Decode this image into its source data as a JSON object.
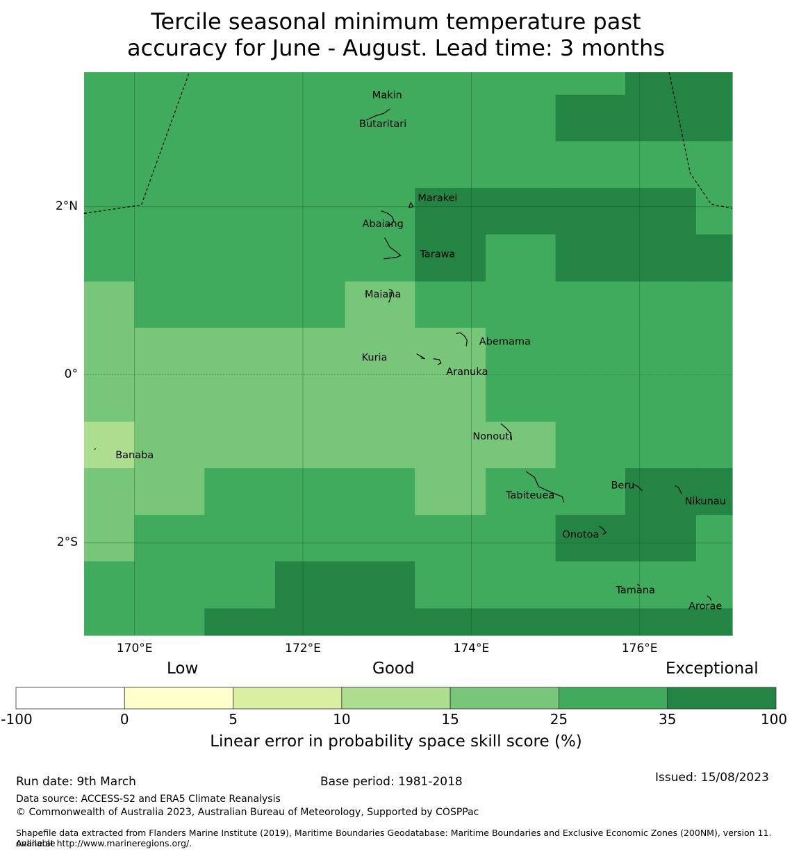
{
  "title": {
    "line1": "Tercile seasonal minimum temperature past",
    "line2": "accuracy for June - August. Lead time: 3 months"
  },
  "map": {
    "lon_range": [
      169.4,
      177.1
    ],
    "lat_range": [
      -3.1,
      3.6
    ],
    "x_ticks": [
      {
        "value": 170,
        "label": "170°E"
      },
      {
        "value": 172,
        "label": "172°E"
      },
      {
        "value": 174,
        "label": "174°E"
      },
      {
        "value": 176,
        "label": "176°E"
      }
    ],
    "y_ticks": [
      {
        "value": 2,
        "label": "2°N"
      },
      {
        "value": 0,
        "label": "0°"
      },
      {
        "value": -2,
        "label": "2°S"
      }
    ],
    "lon_edges": [
      169.4,
      170.0,
      170.83,
      171.67,
      172.5,
      173.33,
      174.17,
      175.0,
      175.83,
      176.67,
      177.1
    ],
    "lat_edges": [
      3.6,
      3.33,
      2.78,
      2.22,
      1.67,
      1.11,
      0.56,
      0.0,
      -0.56,
      -1.11,
      -1.67,
      -2.22,
      -2.78,
      -3.1
    ],
    "grid_classes": [
      [
        5,
        5,
        5,
        5,
        5,
        5,
        5,
        5,
        6,
        6
      ],
      [
        5,
        5,
        5,
        5,
        5,
        5,
        5,
        6,
        6,
        6
      ],
      [
        5,
        5,
        5,
        5,
        5,
        5,
        5,
        5,
        5,
        5
      ],
      [
        5,
        5,
        5,
        5,
        5,
        6,
        6,
        6,
        6,
        5
      ],
      [
        5,
        5,
        5,
        5,
        5,
        6,
        5,
        6,
        6,
        6
      ],
      [
        4,
        5,
        5,
        5,
        4,
        5,
        5,
        5,
        5,
        5
      ],
      [
        4,
        4,
        4,
        4,
        4,
        4,
        5,
        5,
        5,
        5
      ],
      [
        4,
        4,
        4,
        4,
        4,
        4,
        5,
        5,
        5,
        5
      ],
      [
        3,
        4,
        4,
        4,
        4,
        4,
        4,
        5,
        5,
        5
      ],
      [
        4,
        4,
        5,
        5,
        5,
        4,
        5,
        5,
        6,
        6
      ],
      [
        4,
        5,
        5,
        5,
        5,
        5,
        5,
        6,
        6,
        5
      ],
      [
        5,
        5,
        5,
        6,
        6,
        5,
        5,
        5,
        5,
        5
      ],
      [
        5,
        5,
        6,
        6,
        6,
        6,
        6,
        6,
        6,
        6
      ]
    ],
    "boundaries": [
      [
        [
          169.4,
          1.92
        ],
        [
          170.08,
          2.02
        ],
        [
          170.65,
          3.6
        ]
      ],
      [
        [
          176.35,
          3.6
        ],
        [
          176.6,
          2.4
        ],
        [
          176.85,
          2.03
        ],
        [
          177.1,
          1.98
        ]
      ]
    ],
    "islands": [
      {
        "name": "Makin",
        "label_pos": [
          173.0,
          3.33
        ],
        "pts": [
          [
            172.99,
            3.28
          ],
          [
            172.98,
            3.31
          ]
        ]
      },
      {
        "name": "Butaritari",
        "label_pos": [
          172.95,
          2.99
        ],
        "pts": [
          [
            172.75,
            3.03
          ],
          [
            172.86,
            3.08
          ],
          [
            172.96,
            3.11
          ],
          [
            173.03,
            3.16
          ]
        ]
      },
      {
        "name": "Marakei",
        "label_pos": [
          173.6,
          2.11
        ],
        "pts": [
          [
            173.27,
            2.02
          ],
          [
            173.28,
            2.05
          ],
          [
            173.31,
            2.0
          ],
          [
            173.26,
            1.99
          ],
          [
            173.27,
            2.02
          ]
        ]
      },
      {
        "name": "Abaiang",
        "label_pos": [
          172.95,
          1.8
        ],
        "pts": [
          [
            172.93,
            1.95
          ],
          [
            173.01,
            1.92
          ],
          [
            173.06,
            1.88
          ],
          [
            173.08,
            1.83
          ],
          [
            173.05,
            1.79
          ],
          [
            173.0,
            1.78
          ]
        ]
      },
      {
        "name": "Tarawa",
        "label_pos": [
          173.6,
          1.44
        ],
        "pts": [
          [
            172.97,
            1.63
          ],
          [
            173.0,
            1.58
          ],
          [
            173.03,
            1.52
          ],
          [
            173.1,
            1.47
          ],
          [
            173.16,
            1.42
          ],
          [
            173.12,
            1.4
          ],
          [
            173.05,
            1.39
          ],
          [
            172.96,
            1.38
          ]
        ]
      },
      {
        "name": "Maiana",
        "label_pos": [
          172.95,
          0.96
        ],
        "pts": [
          [
            173.02,
            1.02
          ],
          [
            173.06,
            1.0
          ],
          [
            173.05,
            0.94
          ],
          [
            173.02,
            0.86
          ]
        ]
      },
      {
        "name": "Abemama",
        "label_pos": [
          174.4,
          0.4
        ],
        "pts": [
          [
            173.82,
            0.49
          ],
          [
            173.87,
            0.5
          ],
          [
            173.92,
            0.46
          ],
          [
            173.95,
            0.41
          ],
          [
            173.94,
            0.34
          ]
        ]
      },
      {
        "name": "Kuria",
        "label_pos": [
          172.85,
          0.21
        ],
        "pts": [
          [
            173.35,
            0.25
          ],
          [
            173.4,
            0.22
          ],
          [
            173.45,
            0.19
          ],
          [
            173.4,
            0.2
          ]
        ]
      },
      {
        "name": "Aranuka",
        "label_pos": [
          173.95,
          0.04
        ],
        "pts": [
          [
            173.55,
            0.19
          ],
          [
            173.62,
            0.18
          ],
          [
            173.64,
            0.14
          ],
          [
            173.6,
            0.12
          ]
        ]
      },
      {
        "name": "Nonouti",
        "label_pos": [
          174.25,
          -0.73
        ],
        "pts": [
          [
            174.35,
            -0.58
          ],
          [
            174.42,
            -0.64
          ],
          [
            174.47,
            -0.7
          ],
          [
            174.48,
            -0.78
          ]
        ]
      },
      {
        "name": "Banaba",
        "label_pos": [
          170.0,
          -0.95
        ],
        "pts": [
          [
            169.52,
            -0.89
          ],
          [
            169.54,
            -0.88
          ]
        ]
      },
      {
        "name": "Tabiteuea",
        "label_pos": [
          174.7,
          -1.43
        ],
        "pts": [
          [
            174.65,
            -1.15
          ],
          [
            174.75,
            -1.22
          ],
          [
            174.8,
            -1.33
          ],
          [
            174.95,
            -1.4
          ],
          [
            175.08,
            -1.45
          ],
          [
            175.1,
            -1.52
          ]
        ]
      },
      {
        "name": "Beru",
        "label_pos": [
          175.8,
          -1.31
        ],
        "pts": [
          [
            175.92,
            -1.3
          ],
          [
            175.98,
            -1.33
          ],
          [
            176.03,
            -1.38
          ]
        ]
      },
      {
        "name": "Nikunau",
        "label_pos": [
          176.78,
          -1.5
        ],
        "pts": [
          [
            176.42,
            -1.32
          ],
          [
            176.46,
            -1.34
          ],
          [
            176.5,
            -1.42
          ]
        ]
      },
      {
        "name": "Onotoa",
        "label_pos": [
          175.3,
          -1.9
        ],
        "pts": [
          [
            175.52,
            -1.8
          ],
          [
            175.57,
            -1.84
          ],
          [
            175.6,
            -1.88
          ],
          [
            175.56,
            -1.9
          ]
        ]
      },
      {
        "name": "Tamana",
        "label_pos": [
          175.95,
          -2.56
        ],
        "pts": [
          [
            175.97,
            -2.49
          ],
          [
            176.0,
            -2.51
          ]
        ]
      },
      {
        "name": "Arorae",
        "label_pos": [
          176.78,
          -2.75
        ],
        "pts": [
          [
            176.8,
            -2.63
          ],
          [
            176.84,
            -2.66
          ],
          [
            176.85,
            -2.69
          ]
        ]
      }
    ]
  },
  "colorbar": {
    "categories": [
      "Low",
      "Good",
      "Exceptional"
    ],
    "colors": [
      "#ffffff",
      "#ffffcc",
      "#d9f0a3",
      "#addd8e",
      "#78c679",
      "#41ab5d",
      "#238443"
    ],
    "tick_labels": [
      "-100",
      "0",
      "5",
      "10",
      "15",
      "25",
      "35",
      "100"
    ],
    "label": "Linear error in probability space skill score (%)"
  },
  "footer": {
    "run_date": "Run date: 9th March",
    "base_period": "Base period: 1981-2018",
    "issued": "Issued: 15/08/2023",
    "data_source": "Data source: ACCESS-S2 and ERA5 Climate Reanalysis",
    "copyright": "© Commonwealth of Australia 2023, Australian Bureau of Meteorology, Supported by COSPPac",
    "shapefile_line1": "Shapefile data extracted from Flanders Marine Institute (2019), Maritime Boundaries Geodatabase: Maritime Boundaries and Exclusive Economic Zones (200NM), version 11. Available",
    "shapefile_line2": "online at http://www.marineregions.org/."
  }
}
